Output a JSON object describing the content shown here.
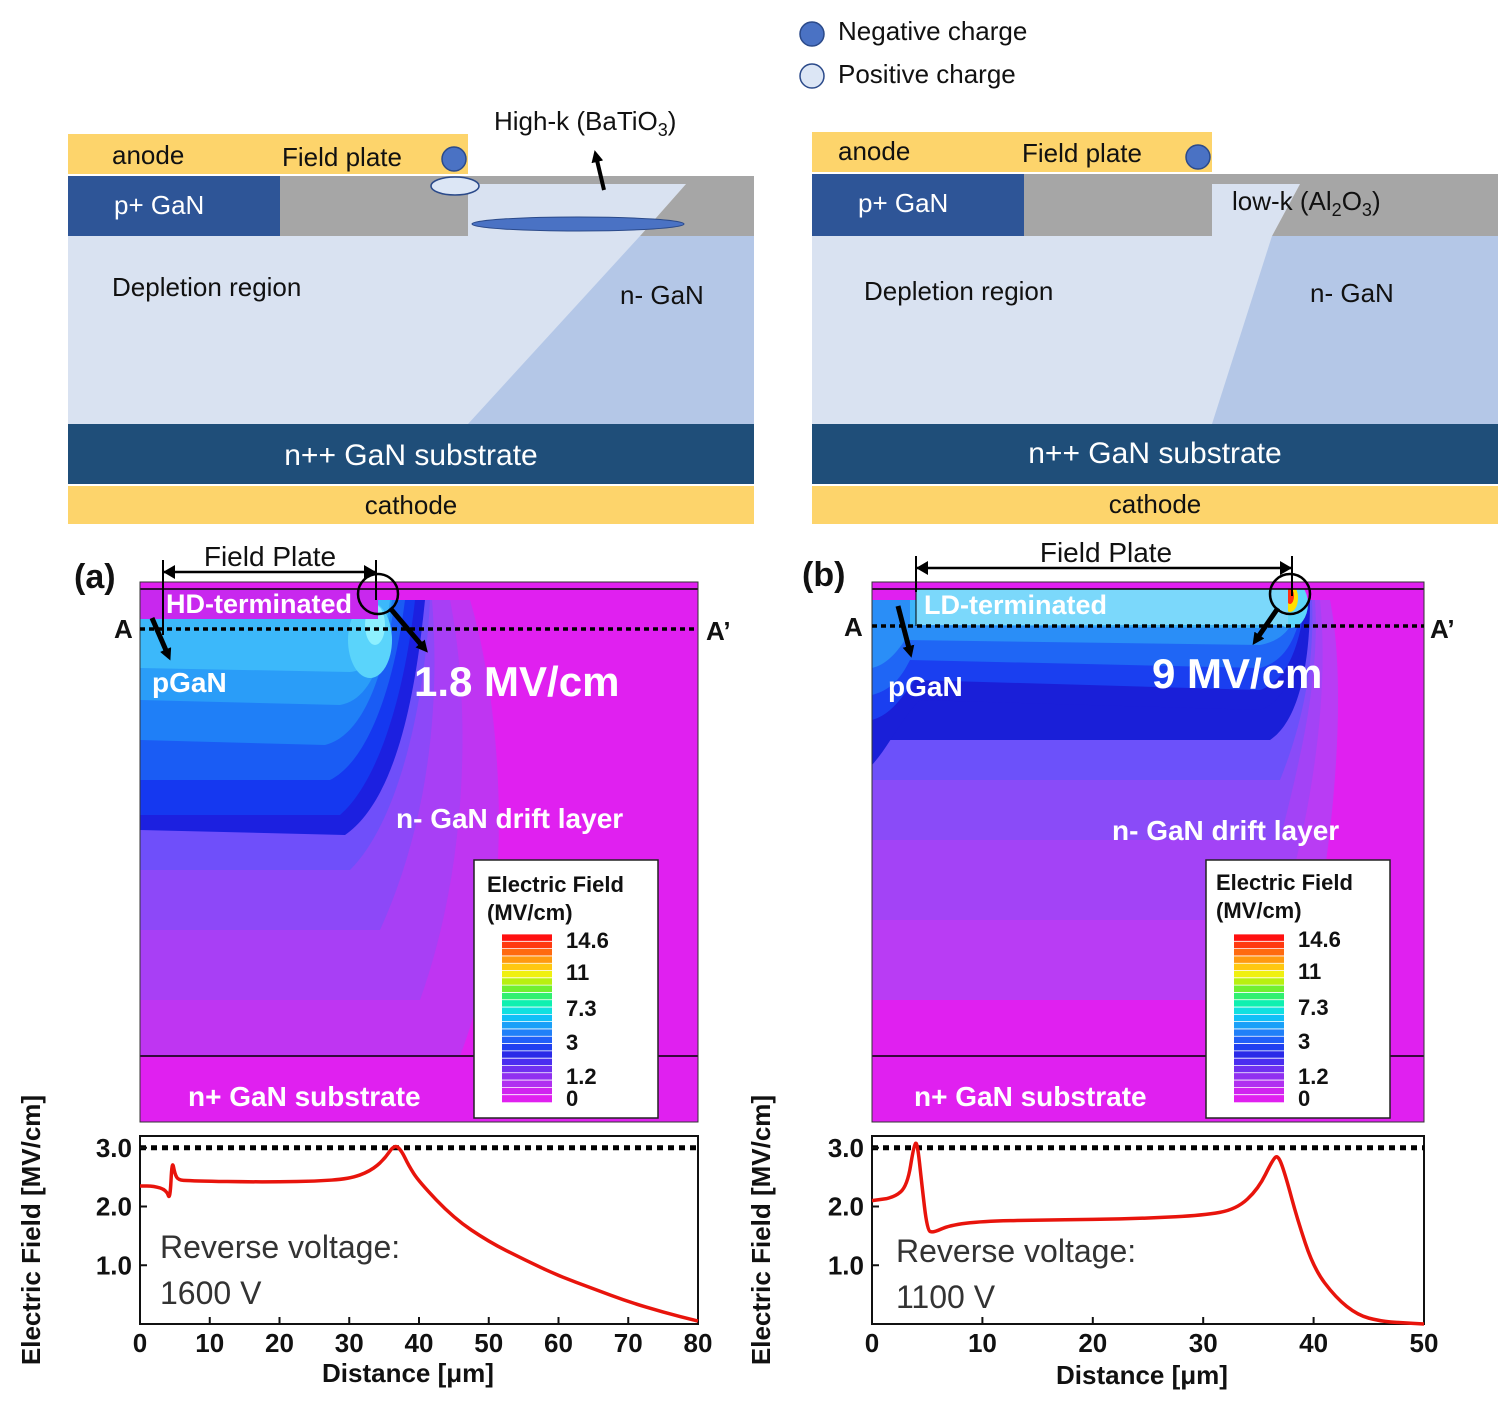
{
  "legend": {
    "negative": "Negative charge",
    "positive": "Positive charge",
    "negative_color": "#4a72c4",
    "positive_color": "#dce6f5"
  },
  "colors": {
    "metal": "#fdd46b",
    "p_gan": "#2e5597",
    "oxide_gray": "#a6a6a6",
    "depletion": "#d9e2f1",
    "n_gan": "#b4c7e7",
    "substrate": "#1f4e79",
    "field_magenta": "#e020f0",
    "curve": "#e8140c"
  },
  "left_schematic": {
    "anode": "anode",
    "field_plate": "Field plate",
    "pgan": "p+ GaN",
    "highk_prefix": "High-k (BaTiO",
    "highk_sub": "3",
    "highk_suffix": ")",
    "depletion": "Depletion region",
    "ngan": "n- GaN",
    "substrate": "n++ GaN substrate",
    "cathode": "cathode"
  },
  "right_schematic": {
    "anode": "anode",
    "field_plate": "Field plate",
    "pgan": "p+ GaN",
    "lowk_prefix": "low-k (Al",
    "lowk_sub1": "2",
    "lowk_mid": "O",
    "lowk_sub2": "3",
    "lowk_suffix": ")",
    "depletion": "Depletion region",
    "ngan": "n- GaN",
    "substrate": "n++ GaN substrate",
    "cathode": "cathode"
  },
  "panel_a": {
    "tag": "(a)",
    "field_plate": "Field Plate",
    "terminated": "HD-terminated",
    "a": "A",
    "a_prime": "A’",
    "pgan": "pGaN",
    "peak": "1.8 MV/cm",
    "drift": "n- GaN drift layer",
    "substrate": "n+ GaN substrate",
    "reverse_label": "Reverse voltage:",
    "reverse_value": "1600 V"
  },
  "panel_b": {
    "tag": "(b)",
    "field_plate": "Field Plate",
    "terminated": "LD-terminated",
    "a": "A",
    "a_prime": "A’",
    "pgan": "pGaN",
    "peak": "9 MV/cm",
    "drift": "n- GaN drift layer",
    "substrate": "n+ GaN substrate",
    "reverse_label": "Reverse voltage:",
    "reverse_value": "1100 V"
  },
  "colorbar": {
    "title1": "Electric Field",
    "title2": "(MV/cm)",
    "ticks": [
      "14.6",
      "11",
      "7.3",
      "3",
      "1.2",
      "0"
    ]
  },
  "chart_data": [
    {
      "type": "line",
      "xlabel": "Distance [μm]",
      "ylabel": "Electric Field [MV/cm]",
      "xlim": [
        0,
        80
      ],
      "ylim": [
        0,
        3.2
      ],
      "xticks": [
        0,
        10,
        20,
        30,
        40,
        50,
        60,
        70,
        80
      ],
      "yticks": [
        "1.0",
        "2.0",
        "3.0"
      ],
      "reference_line": 3.0,
      "x": [
        0,
        2,
        3.8,
        4.3,
        4.6,
        5,
        5.5,
        7,
        10,
        15,
        20,
        25,
        30,
        33,
        35,
        36.5,
        37.5,
        38.5,
        40,
        45,
        50,
        55,
        60,
        65,
        70,
        75,
        80
      ],
      "y": [
        2.35,
        2.35,
        2.28,
        2.1,
        2.8,
        2.55,
        2.45,
        2.44,
        2.43,
        2.42,
        2.42,
        2.43,
        2.47,
        2.6,
        2.8,
        3.06,
        2.95,
        2.7,
        2.42,
        1.8,
        1.4,
        1.1,
        0.82,
        0.6,
        0.38,
        0.2,
        0.05
      ]
    },
    {
      "type": "line",
      "xlabel": "Distance [μm]",
      "ylabel": "Electric Field [MV/cm]",
      "xlim": [
        0,
        50
      ],
      "ylim": [
        0,
        3.2
      ],
      "xticks": [
        0,
        10,
        20,
        30,
        40,
        50
      ],
      "yticks": [
        "1.0",
        "2.0",
        "3.0"
      ],
      "reference_line": 3.0,
      "x": [
        0,
        2,
        3.2,
        3.8,
        4.1,
        4.5,
        5,
        5.5,
        7,
        10,
        15,
        20,
        25,
        30,
        33,
        35,
        36.3,
        36.8,
        37.5,
        38.5,
        40,
        42,
        44,
        46,
        48,
        50
      ],
      "y": [
        2.1,
        2.15,
        2.35,
        3.05,
        3.1,
        2.4,
        1.6,
        1.55,
        1.68,
        1.75,
        1.77,
        1.78,
        1.8,
        1.85,
        1.95,
        2.3,
        2.8,
        2.88,
        2.5,
        1.8,
        0.95,
        0.45,
        0.15,
        0.05,
        0.02,
        0.0
      ]
    }
  ]
}
